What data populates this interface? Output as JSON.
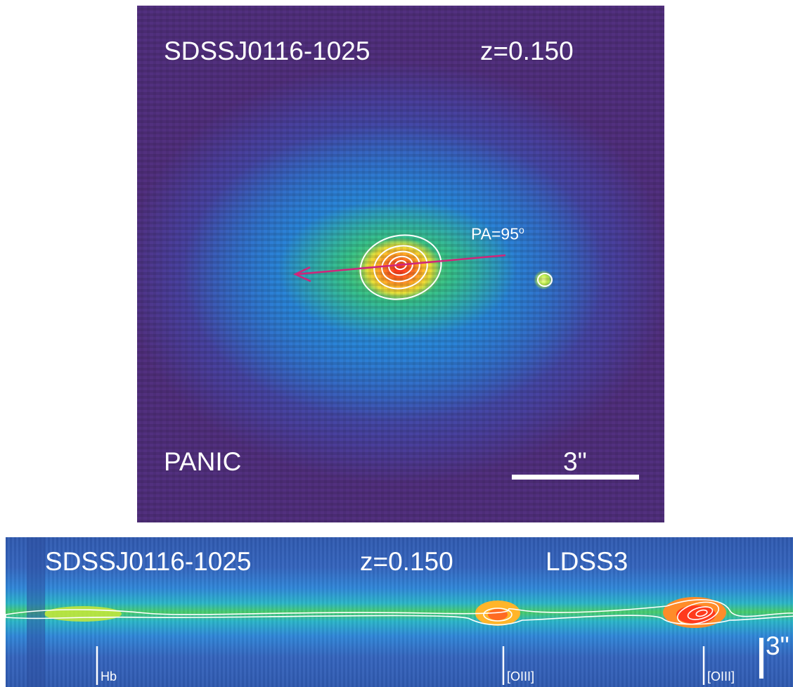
{
  "image_panel": {
    "object_name": "SDSSJ0116-1025",
    "redshift": "z=0.150",
    "position_angle": "PA=95",
    "position_angle_unit": "o",
    "instrument": "PANIC",
    "scale_bar_label": "3\""
  },
  "spectrum_panel": {
    "object_name": "SDSSJ0116-1025",
    "redshift": "z=0.150",
    "instrument": "LDSS3",
    "line_labels": [
      "Hb",
      "[OIII]",
      "[OIII]"
    ],
    "scale_bar_label": "3\""
  },
  "colors": {
    "arrow": "#d0257a",
    "contour": "#ffffff",
    "text": "#ffffff"
  }
}
